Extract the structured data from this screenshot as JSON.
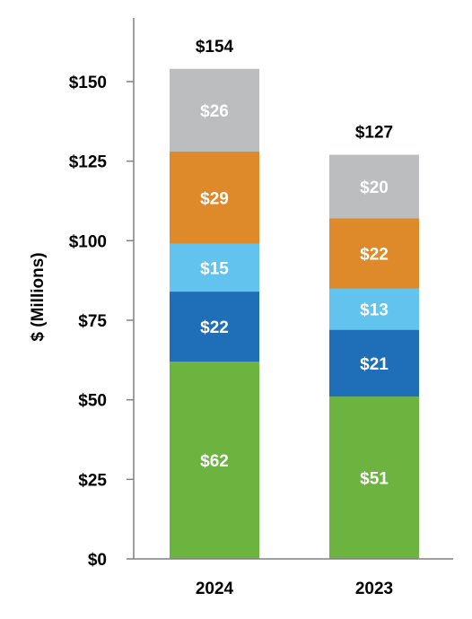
{
  "chart_data": {
    "type": "bar",
    "stacked": true,
    "title": "",
    "xlabel": "",
    "ylabel": "$ (Millions)",
    "ylim": [
      0,
      175
    ],
    "yticks": [
      0,
      25,
      50,
      75,
      100,
      125,
      150
    ],
    "ytick_labels": [
      "$0",
      "$25",
      "$50",
      "$75",
      "$100",
      "$125",
      "$150"
    ],
    "grid": false,
    "categories": [
      "2024",
      "2023"
    ],
    "series": [
      {
        "values": [
          62,
          51
        ],
        "labels": [
          "$62",
          "$51"
        ],
        "color": "#6db33f"
      },
      {
        "values": [
          22,
          21
        ],
        "labels": [
          "$22",
          "$21"
        ],
        "color": "#1f6fb8"
      },
      {
        "values": [
          15,
          13
        ],
        "labels": [
          "$15",
          "$13"
        ],
        "color": "#62c3ef"
      },
      {
        "values": [
          29,
          22
        ],
        "labels": [
          "$29",
          "$22"
        ],
        "color": "#de8a2a"
      },
      {
        "values": [
          26,
          20
        ],
        "labels": [
          "$26",
          "$20"
        ],
        "color": "#bcbdbf"
      }
    ],
    "totals": [
      154,
      127
    ],
    "total_labels": [
      "$154",
      "$127"
    ]
  }
}
